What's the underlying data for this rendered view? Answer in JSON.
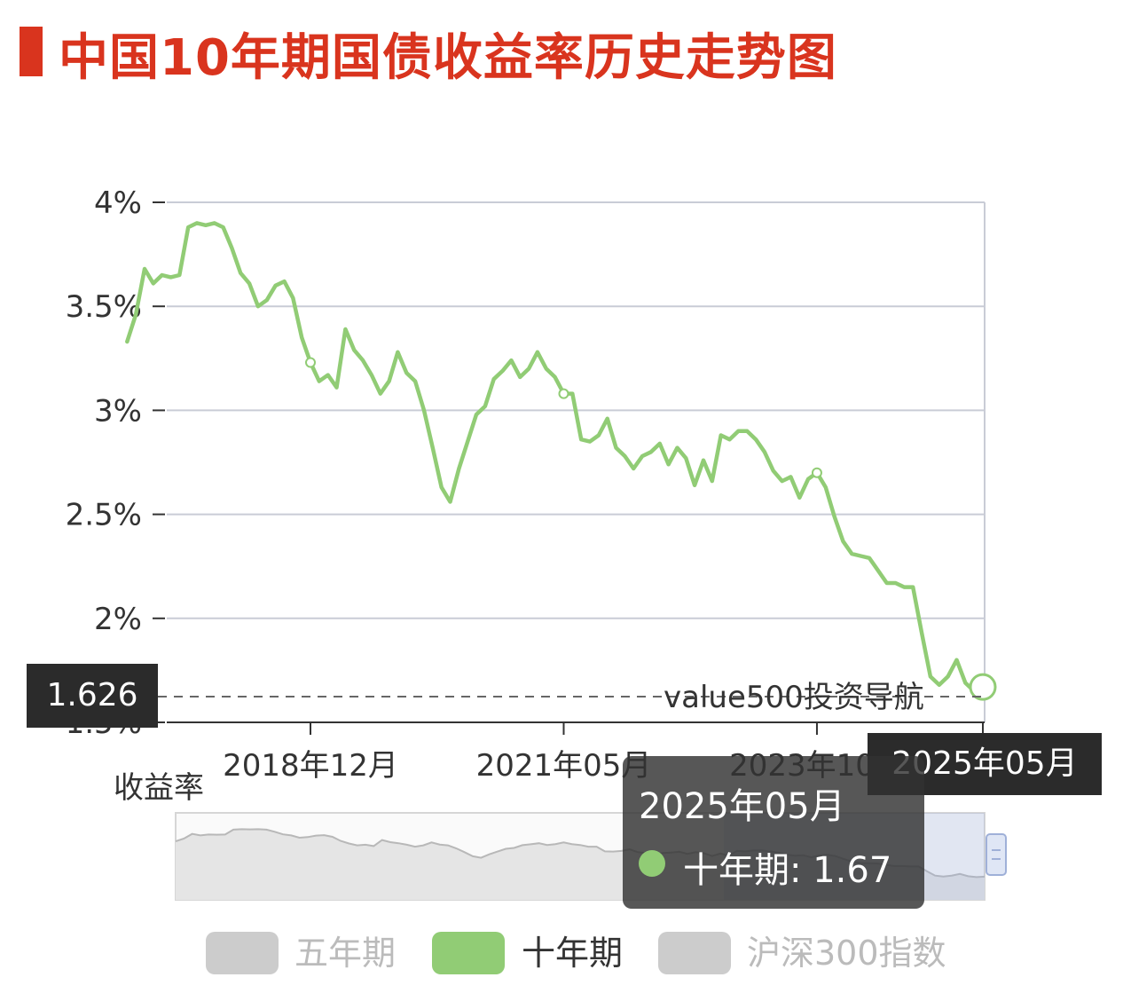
{
  "title": "中国10年期国债收益率历史走势图",
  "watermark": "value500投资导航",
  "y_axis_name": "收益率",
  "axis_pointer": {
    "y_value": "1.626",
    "x_value": "2025年05月"
  },
  "tooltip": {
    "title": "2025年05月",
    "series": "十年期",
    "value": "1.67"
  },
  "legend": [
    {
      "name": "五年期",
      "active": false,
      "color": "#cccccc"
    },
    {
      "name": "十年期",
      "active": true,
      "color": "#91cc75"
    },
    {
      "name": "沪深300指数",
      "active": false,
      "color": "#cccccc"
    }
  ],
  "colors": {
    "title": "#d9341e",
    "line": "#91cc75",
    "grid": "#c9ccd6",
    "tooltip_bg": "#323232"
  },
  "chart_data": {
    "type": "line",
    "title": "中国10年期国债收益率历史走势图",
    "ylabel": "收益率",
    "xlabel": "",
    "ylim": [
      1.5,
      4.0
    ],
    "y_ticks": [
      "4%",
      "3.5%",
      "3%",
      "2.5%",
      "2%",
      "1.5%"
    ],
    "x_ticks": [
      "2018年12月",
      "2021年05月",
      "2023年10月",
      "2025年05月"
    ],
    "grid": true,
    "series": [
      {
        "name": "十年期",
        "points": [
          [
            "2017-03",
            3.33
          ],
          [
            "2017-04",
            3.46
          ],
          [
            "2017-05",
            3.68
          ],
          [
            "2017-06",
            3.61
          ],
          [
            "2017-07",
            3.65
          ],
          [
            "2017-08",
            3.64
          ],
          [
            "2017-09",
            3.65
          ],
          [
            "2017-10",
            3.88
          ],
          [
            "2017-11",
            3.9
          ],
          [
            "2017-12",
            3.89
          ],
          [
            "2018-01",
            3.9
          ],
          [
            "2018-02",
            3.88
          ],
          [
            "2018-03",
            3.78
          ],
          [
            "2018-04",
            3.66
          ],
          [
            "2018-05",
            3.61
          ],
          [
            "2018-06",
            3.5
          ],
          [
            "2018-07",
            3.53
          ],
          [
            "2018-08",
            3.6
          ],
          [
            "2018-09",
            3.62
          ],
          [
            "2018-10",
            3.54
          ],
          [
            "2018-11",
            3.35
          ],
          [
            "2018-12",
            3.23
          ],
          [
            "2019-01",
            3.14
          ],
          [
            "2019-02",
            3.17
          ],
          [
            "2019-03",
            3.11
          ],
          [
            "2019-04",
            3.39
          ],
          [
            "2019-05",
            3.29
          ],
          [
            "2019-06",
            3.24
          ],
          [
            "2019-07",
            3.17
          ],
          [
            "2019-08",
            3.08
          ],
          [
            "2019-09",
            3.14
          ],
          [
            "2019-10",
            3.28
          ],
          [
            "2019-11",
            3.18
          ],
          [
            "2019-12",
            3.14
          ],
          [
            "2020-01",
            3.0
          ],
          [
            "2020-02",
            2.82
          ],
          [
            "2020-03",
            2.63
          ],
          [
            "2020-04",
            2.56
          ],
          [
            "2020-05",
            2.72
          ],
          [
            "2020-06",
            2.85
          ],
          [
            "2020-07",
            2.98
          ],
          [
            "2020-08",
            3.02
          ],
          [
            "2020-09",
            3.15
          ],
          [
            "2020-10",
            3.19
          ],
          [
            "2020-11",
            3.24
          ],
          [
            "2020-12",
            3.16
          ],
          [
            "2021-01",
            3.2
          ],
          [
            "2021-02",
            3.28
          ],
          [
            "2021-03",
            3.2
          ],
          [
            "2021-04",
            3.16
          ],
          [
            "2021-05",
            3.08
          ],
          [
            "2021-06",
            3.08
          ],
          [
            "2021-07",
            2.86
          ],
          [
            "2021-08",
            2.85
          ],
          [
            "2021-09",
            2.88
          ],
          [
            "2021-10",
            2.96
          ],
          [
            "2021-11",
            2.82
          ],
          [
            "2021-12",
            2.78
          ],
          [
            "2022-01",
            2.72
          ],
          [
            "2022-02",
            2.78
          ],
          [
            "2022-03",
            2.8
          ],
          [
            "2022-04",
            2.84
          ],
          [
            "2022-05",
            2.74
          ],
          [
            "2022-06",
            2.82
          ],
          [
            "2022-07",
            2.77
          ],
          [
            "2022-08",
            2.64
          ],
          [
            "2022-09",
            2.76
          ],
          [
            "2022-10",
            2.66
          ],
          [
            "2022-11",
            2.88
          ],
          [
            "2022-12",
            2.86
          ],
          [
            "2023-01",
            2.9
          ],
          [
            "2023-02",
            2.9
          ],
          [
            "2023-03",
            2.86
          ],
          [
            "2023-04",
            2.8
          ],
          [
            "2023-05",
            2.71
          ],
          [
            "2023-06",
            2.66
          ],
          [
            "2023-07",
            2.68
          ],
          [
            "2023-08",
            2.58
          ],
          [
            "2023-09",
            2.67
          ],
          [
            "2023-10",
            2.7
          ],
          [
            "2023-11",
            2.63
          ],
          [
            "2023-12",
            2.49
          ],
          [
            "2024-01",
            2.37
          ],
          [
            "2024-02",
            2.31
          ],
          [
            "2024-03",
            2.3
          ],
          [
            "2024-04",
            2.29
          ],
          [
            "2024-05",
            2.23
          ],
          [
            "2024-06",
            2.17
          ],
          [
            "2024-07",
            2.17
          ],
          [
            "2024-08",
            2.15
          ],
          [
            "2024-09",
            2.15
          ],
          [
            "2024-10",
            1.93
          ],
          [
            "2024-11",
            1.72
          ],
          [
            "2024-12",
            1.68
          ],
          [
            "2025-01",
            1.72
          ],
          [
            "2025-02",
            1.8
          ],
          [
            "2025-03",
            1.69
          ],
          [
            "2025-04",
            1.65
          ],
          [
            "2025-05",
            1.67
          ]
        ],
        "highlighted": [
          "2018-12",
          "2021-05",
          "2023-10",
          "2025-05"
        ]
      }
    ]
  }
}
